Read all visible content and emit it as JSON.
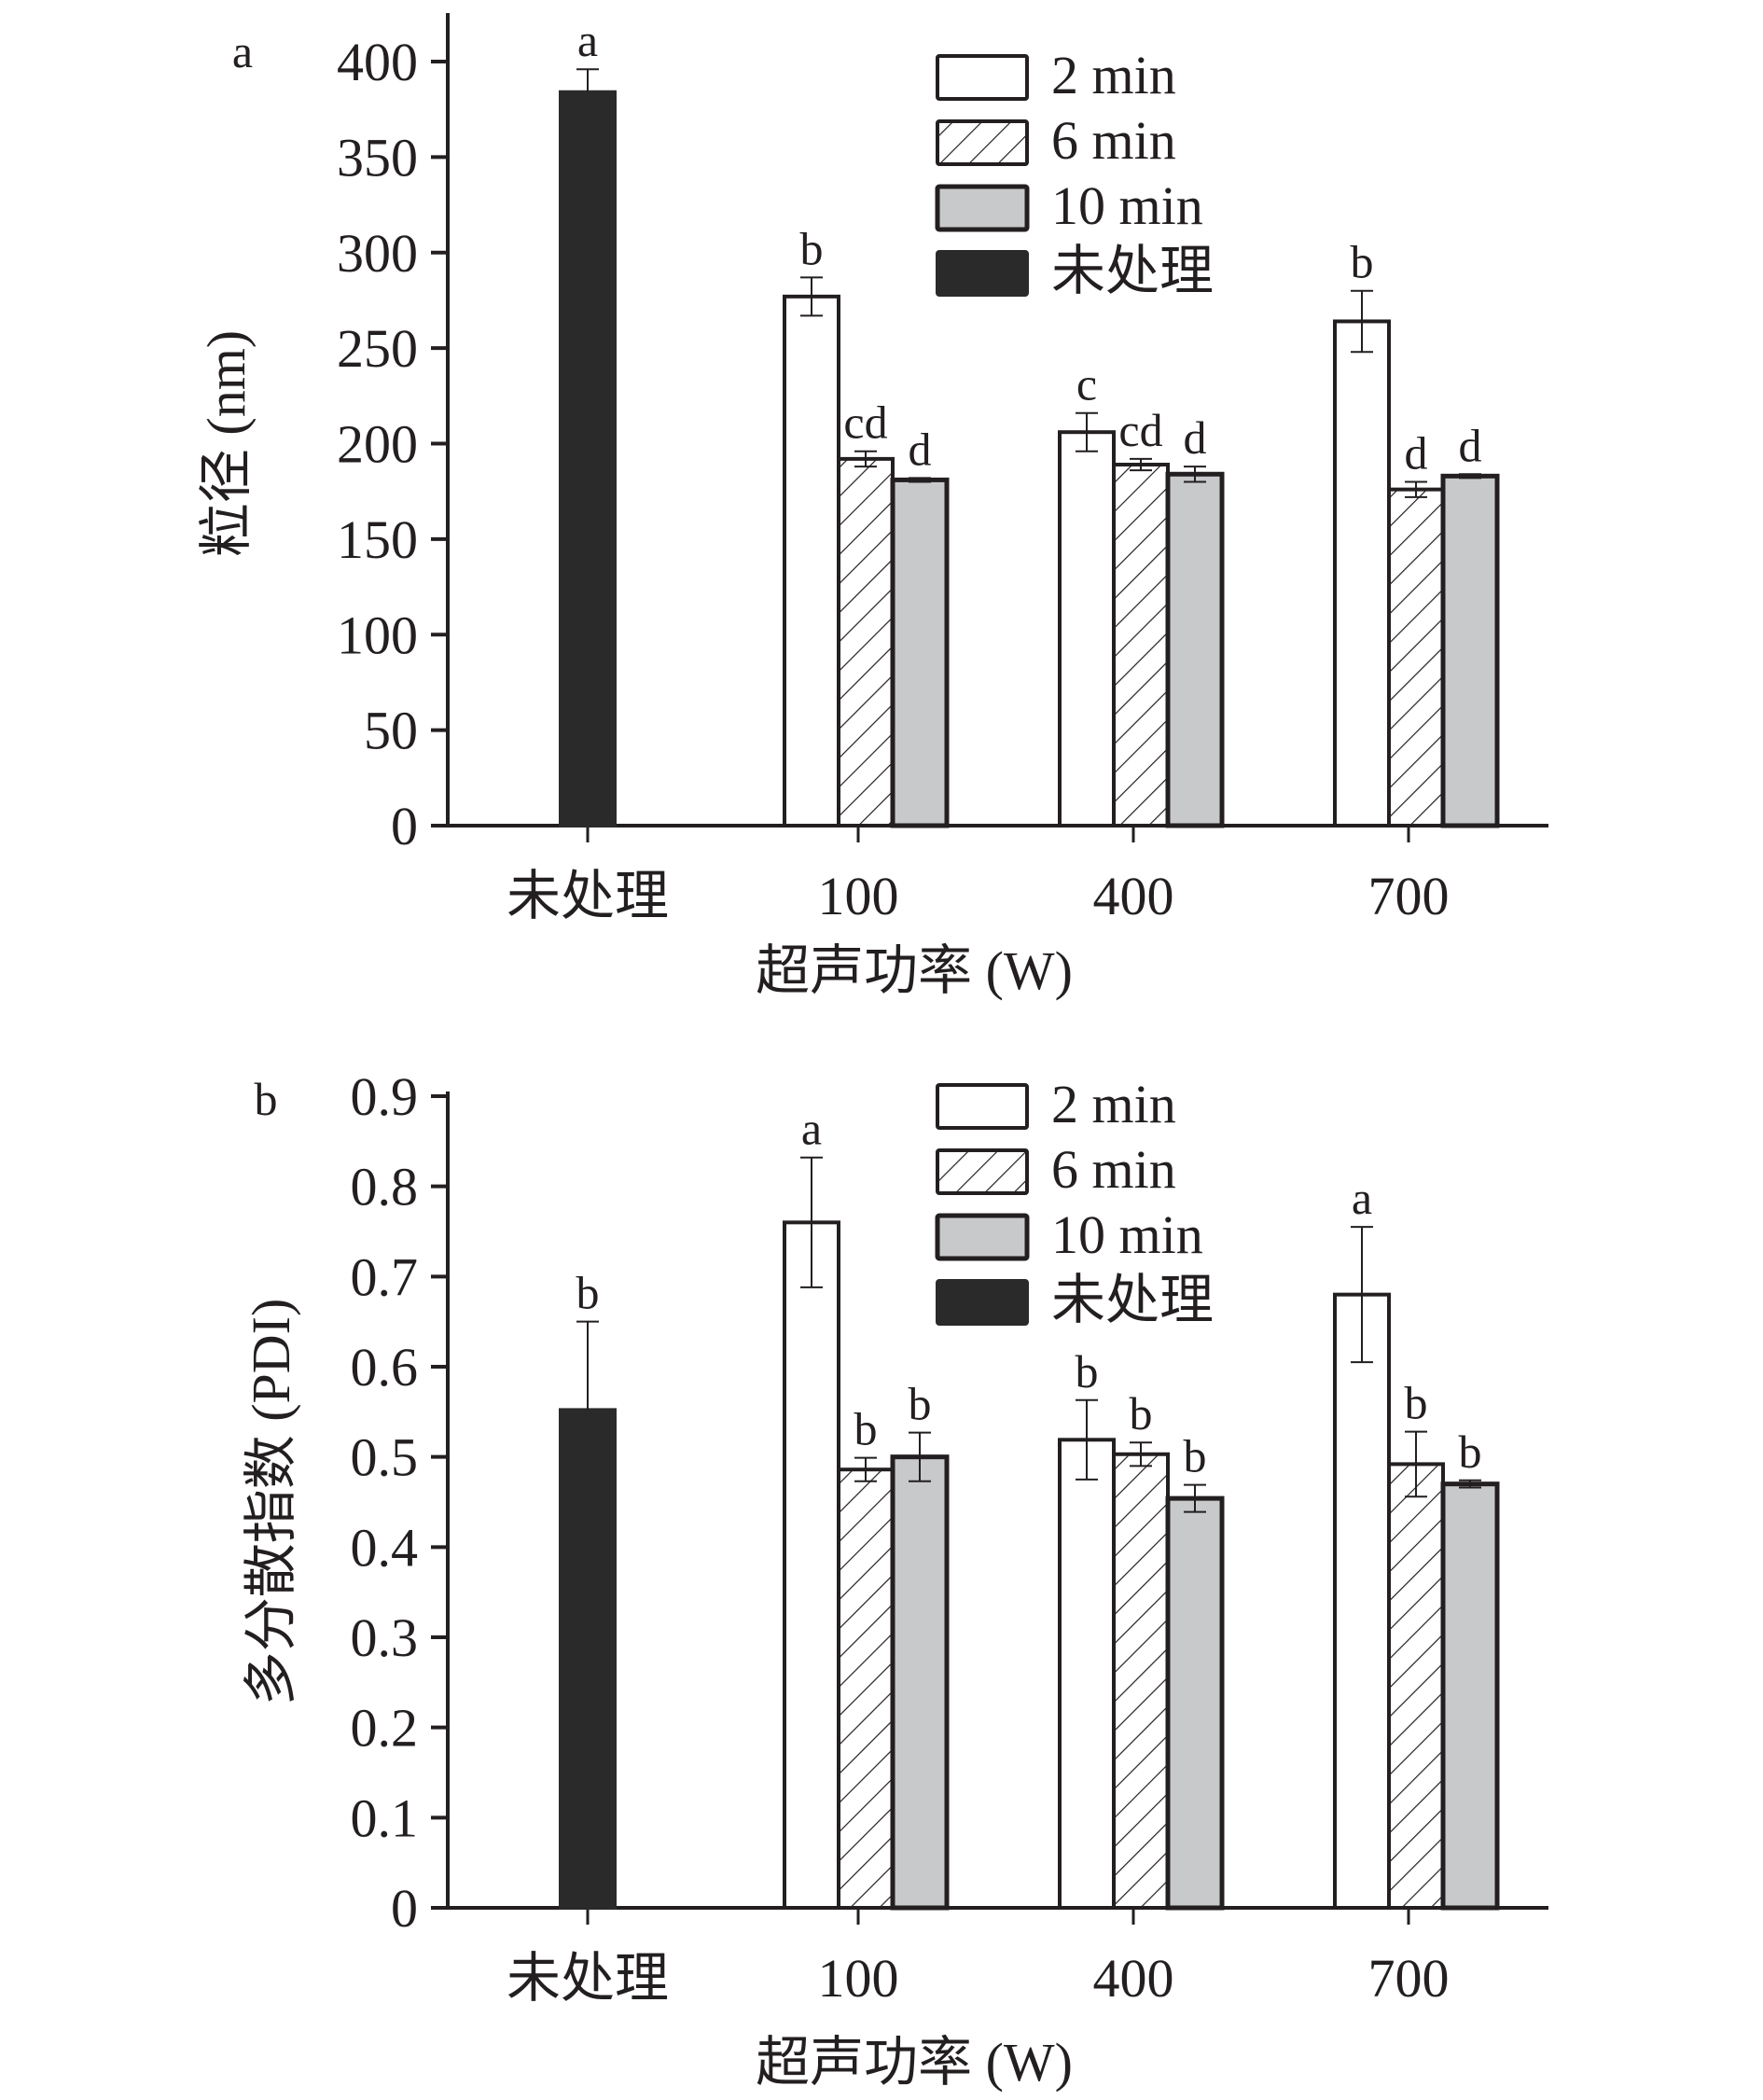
{
  "chart_data": [
    {
      "type": "bar",
      "panel": "a",
      "title": "",
      "xlabel": "超声功率 (W)",
      "ylabel": "粒径 (nm)",
      "ylim": [
        0,
        400
      ],
      "yticks": [
        "0",
        "50",
        "100",
        "150",
        "200",
        "250",
        "300",
        "350",
        "400"
      ],
      "categories": [
        "未处理",
        "100",
        "400",
        "700"
      ],
      "legend": {
        "position": "top-right",
        "entries": [
          "2 min",
          "6 min",
          "10 min",
          "未处理"
        ]
      },
      "series": [
        {
          "name": "未处理",
          "values": [
            384,
            null,
            null,
            null
          ],
          "errors": [
            12,
            null,
            null,
            null
          ],
          "letters": [
            "a",
            null,
            null,
            null
          ],
          "fill": "#2b2a2a"
        },
        {
          "name": "2 min",
          "values": [
            null,
            277,
            206,
            264
          ],
          "errors": [
            null,
            10,
            10,
            16
          ],
          "letters": [
            null,
            "b",
            "c",
            "b"
          ],
          "fill": "#ffffff"
        },
        {
          "name": "6 min",
          "values": [
            null,
            192,
            189,
            176
          ],
          "errors": [
            null,
            4,
            3,
            4
          ],
          "letters": [
            null,
            "cd",
            "cd",
            "d"
          ],
          "fill": "hatch"
        },
        {
          "name": "10 min",
          "values": [
            null,
            181,
            184,
            183
          ],
          "errors": [
            null,
            1,
            4,
            1
          ],
          "letters": [
            null,
            "d",
            "d",
            "d"
          ],
          "fill": "#c8c9cb"
        }
      ]
    },
    {
      "type": "bar",
      "panel": "b",
      "title": "",
      "xlabel": "超声功率 (W)",
      "ylabel": "多分散指数 (PDI)",
      "ylim": [
        0,
        0.9
      ],
      "yticks": [
        "0",
        "0.1",
        "0.2",
        "0.3",
        "0.4",
        "0.5",
        "0.6",
        "0.7",
        "0.8",
        "0.9"
      ],
      "categories": [
        "未处理",
        "100",
        "400",
        "700"
      ],
      "legend": {
        "position": "top-right",
        "entries": [
          "2 min",
          "6 min",
          "10 min",
          "未处理"
        ]
      },
      "series": [
        {
          "name": "未处理",
          "values": [
            0.552,
            null,
            null,
            null
          ],
          "errors": [
            0.098,
            null,
            null,
            null
          ],
          "letters": [
            "b",
            null,
            null,
            null
          ],
          "fill": "#2b2a2a"
        },
        {
          "name": "2 min",
          "values": [
            null,
            0.76,
            0.519,
            0.68
          ],
          "errors": [
            null,
            0.072,
            0.044,
            0.075
          ],
          "letters": [
            null,
            "a",
            "b",
            "a"
          ],
          "fill": "#ffffff"
        },
        {
          "name": "6 min",
          "values": [
            null,
            0.486,
            0.503,
            0.492
          ],
          "errors": [
            null,
            0.013,
            0.013,
            0.036
          ],
          "letters": [
            null,
            "b",
            "b",
            "b"
          ],
          "fill": "hatch"
        },
        {
          "name": "10 min",
          "values": [
            null,
            0.5,
            0.454,
            0.47
          ],
          "errors": [
            null,
            0.027,
            0.015,
            0.004
          ],
          "letters": [
            null,
            "b",
            "b",
            "b"
          ],
          "fill": "#c8c9cb"
        }
      ]
    }
  ],
  "colors": {
    "ink": "#231f20",
    "untreated": "#2b2a2a",
    "grey": "#c8c9cb",
    "white": "#ffffff"
  }
}
